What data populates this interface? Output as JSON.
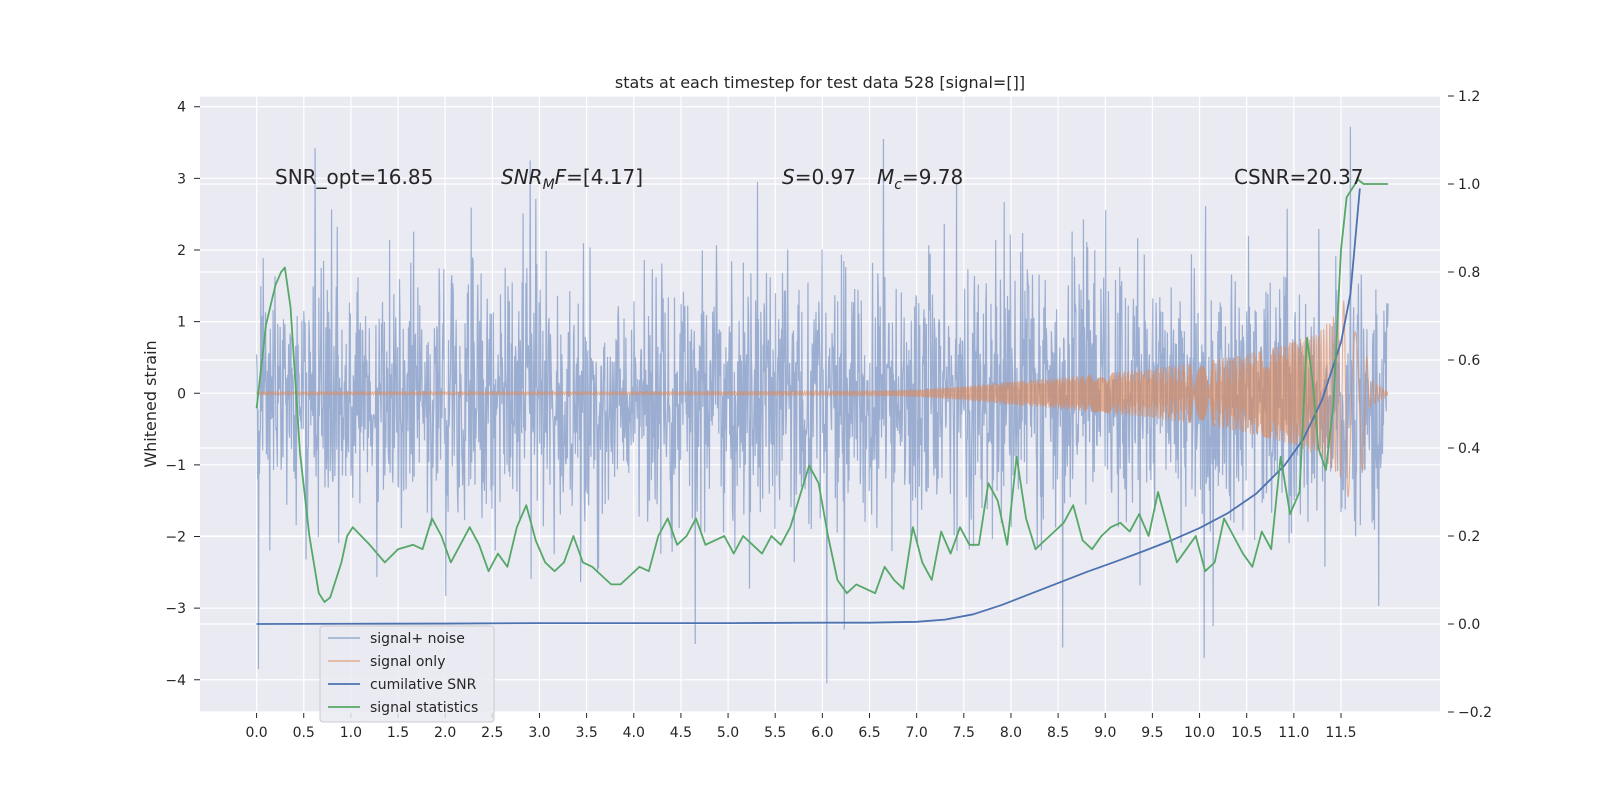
{
  "chart_data": {
    "type": "line",
    "title": "stats at each timestep for test data 528 [signal=[]]",
    "ylabel": "Whitened strain",
    "y2label": "",
    "xlim": [
      -0.6,
      12.55
    ],
    "ylim": [
      -4.45,
      4.15
    ],
    "y2lim": [
      -0.2,
      1.2
    ],
    "xticks": [
      0.0,
      0.5,
      1.0,
      1.5,
      2.0,
      2.5,
      3.0,
      3.5,
      4.0,
      4.5,
      5.0,
      5.5,
      6.0,
      6.5,
      7.0,
      7.5,
      8.0,
      8.5,
      9.0,
      9.5,
      10.0,
      10.5,
      11.0,
      11.5
    ],
    "xtick_labels": [
      "0.0",
      "0.5",
      "1.0",
      "1.5",
      "2.0",
      "2.5",
      "3.0",
      "3.5",
      "4.0",
      "4.5",
      "5.0",
      "5.5",
      "6.0",
      "6.5",
      "7.0",
      "7.5",
      "8.0",
      "8.5",
      "9.0",
      "9.5",
      "10.0",
      "10.5",
      "11.0",
      "11.5"
    ],
    "yticks": [
      -4,
      -3,
      -2,
      -1,
      0,
      1,
      2,
      3,
      4
    ],
    "ytick_labels": [
      "−4",
      "−3",
      "−2",
      "−1",
      "0",
      "1",
      "2",
      "3",
      "4"
    ],
    "y2ticks": [
      -0.2,
      0.0,
      0.2,
      0.4,
      0.6,
      0.8,
      1.0,
      1.2
    ],
    "y2tick_labels": [
      "−0.2",
      "0.0",
      "0.2",
      "0.4",
      "0.6",
      "0.8",
      "1.0",
      "1.2"
    ],
    "grid": true,
    "legend_position": "lower-left",
    "annotations": {
      "snr_opt": "SNR_opt=16.85",
      "snr_mf_sym": "SNR",
      "snr_mf_sub": "M",
      "snr_mf_f": "F",
      "snr_mf_rest": "=[4.17]",
      "s_sym": "S",
      "s_rest": "=0.97",
      "mc_sym": "M",
      "mc_sub": "c",
      "mc_rest": "=9.78",
      "csnr": "CSNR=20.37"
    },
    "series": [
      {
        "name": "signal+ noise",
        "axis": "left",
        "color": "#4c72b0",
        "style": "noise band, std ~0.9, x 0.0–12.0",
        "extremes": [
          [
            0.02,
            -3.85
          ],
          [
            0.62,
            3.42
          ],
          [
            2.9,
            3.25
          ],
          [
            4.65,
            -3.5
          ],
          [
            6.05,
            -4.05
          ],
          [
            6.65,
            3.55
          ],
          [
            8.55,
            -3.55
          ],
          [
            10.05,
            -3.7
          ],
          [
            11.6,
            3.72
          ]
        ]
      },
      {
        "name": "signal only",
        "axis": "left",
        "color": "#dd8452",
        "envelope": [
          [
            0.0,
            0.02
          ],
          [
            4.0,
            0.02
          ],
          [
            6.5,
            0.03
          ],
          [
            7.0,
            0.05
          ],
          [
            7.5,
            0.1
          ],
          [
            8.0,
            0.16
          ],
          [
            8.5,
            0.22
          ],
          [
            9.0,
            0.28
          ],
          [
            9.5,
            0.35
          ],
          [
            10.0,
            0.44
          ],
          [
            10.5,
            0.55
          ],
          [
            11.0,
            0.72
          ],
          [
            11.3,
            0.9
          ],
          [
            11.5,
            1.2
          ],
          [
            11.65,
            1.7
          ],
          [
            11.72,
            1.2
          ],
          [
            11.8,
            0.2
          ],
          [
            12.0,
            0.02
          ]
        ]
      },
      {
        "name": "cumilative SNR",
        "axis": "right",
        "color": "#4c72b0",
        "x": [
          0.0,
          1.0,
          2.0,
          3.0,
          4.0,
          5.0,
          6.0,
          6.5,
          7.0,
          7.3,
          7.6,
          7.9,
          8.2,
          8.5,
          8.8,
          9.1,
          9.4,
          9.7,
          10.0,
          10.3,
          10.6,
          10.9,
          11.1,
          11.3,
          11.5,
          11.6,
          11.7
        ],
        "y": [
          0.0,
          0.0005,
          0.001,
          0.002,
          0.002,
          0.002,
          0.003,
          0.003,
          0.005,
          0.01,
          0.022,
          0.043,
          0.068,
          0.093,
          0.118,
          0.141,
          0.165,
          0.19,
          0.218,
          0.252,
          0.296,
          0.36,
          0.42,
          0.51,
          0.64,
          0.75,
          0.99
        ]
      },
      {
        "name": "signal statistics",
        "axis": "right",
        "color": "#55a868",
        "x": [
          0.0,
          0.1,
          0.2,
          0.26,
          0.3,
          0.36,
          0.46,
          0.56,
          0.66,
          0.72,
          0.78,
          0.9,
          0.96,
          1.02,
          1.2,
          1.36,
          1.5,
          1.66,
          1.76,
          1.86,
          1.96,
          2.06,
          2.16,
          2.26,
          2.36,
          2.46,
          2.56,
          2.66,
          2.76,
          2.86,
          2.96,
          3.06,
          3.16,
          3.26,
          3.36,
          3.46,
          3.56,
          3.66,
          3.76,
          3.86,
          3.96,
          4.06,
          4.16,
          4.26,
          4.36,
          4.46,
          4.56,
          4.66,
          4.76,
          4.86,
          4.96,
          5.06,
          5.16,
          5.26,
          5.36,
          5.46,
          5.56,
          5.66,
          5.76,
          5.86,
          5.96,
          6.06,
          6.16,
          6.26,
          6.36,
          6.46,
          6.56,
          6.66,
          6.76,
          6.86,
          6.96,
          7.06,
          7.16,
          7.26,
          7.36,
          7.46,
          7.56,
          7.66,
          7.76,
          7.86,
          7.96,
          8.06,
          8.16,
          8.26,
          8.36,
          8.46,
          8.56,
          8.66,
          8.76,
          8.86,
          8.96,
          9.06,
          9.16,
          9.26,
          9.36,
          9.46,
          9.56,
          9.66,
          9.76,
          9.86,
          9.96,
          10.06,
          10.16,
          10.26,
          10.36,
          10.46,
          10.56,
          10.66,
          10.76,
          10.86,
          10.96,
          11.06,
          11.14,
          11.2,
          11.26,
          11.34,
          11.42,
          11.5,
          11.56,
          11.62,
          11.68,
          11.74,
          11.8,
          11.9,
          12.0
        ],
        "y": [
          0.49,
          0.68,
          0.77,
          0.8,
          0.81,
          0.72,
          0.39,
          0.2,
          0.07,
          0.05,
          0.06,
          0.14,
          0.2,
          0.22,
          0.18,
          0.14,
          0.17,
          0.18,
          0.17,
          0.24,
          0.2,
          0.14,
          0.18,
          0.22,
          0.18,
          0.12,
          0.16,
          0.13,
          0.22,
          0.27,
          0.19,
          0.14,
          0.12,
          0.14,
          0.2,
          0.14,
          0.13,
          0.11,
          0.09,
          0.09,
          0.11,
          0.13,
          0.12,
          0.2,
          0.24,
          0.18,
          0.2,
          0.24,
          0.18,
          0.19,
          0.2,
          0.16,
          0.2,
          0.18,
          0.16,
          0.2,
          0.18,
          0.22,
          0.29,
          0.36,
          0.32,
          0.2,
          0.1,
          0.07,
          0.09,
          0.08,
          0.07,
          0.13,
          0.1,
          0.08,
          0.22,
          0.14,
          0.1,
          0.21,
          0.16,
          0.22,
          0.18,
          0.18,
          0.32,
          0.28,
          0.18,
          0.38,
          0.24,
          0.17,
          0.19,
          0.21,
          0.23,
          0.27,
          0.19,
          0.17,
          0.2,
          0.22,
          0.23,
          0.21,
          0.25,
          0.2,
          0.3,
          0.22,
          0.14,
          0.17,
          0.2,
          0.12,
          0.14,
          0.24,
          0.2,
          0.16,
          0.13,
          0.21,
          0.17,
          0.38,
          0.25,
          0.3,
          0.65,
          0.55,
          0.4,
          0.35,
          0.5,
          0.85,
          0.97,
          0.99,
          1.01,
          1.0,
          1.0,
          1.0,
          1.0
        ]
      }
    ]
  }
}
